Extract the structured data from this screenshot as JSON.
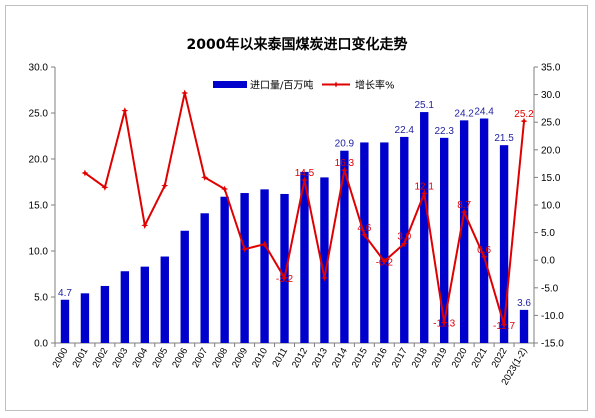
{
  "chart_data": {
    "type": "bar",
    "title": "2000年以来泰国煤炭进口变化走势",
    "categories": [
      "2000",
      "2001",
      "2002",
      "2003",
      "2004",
      "2005",
      "2006",
      "2007",
      "2008",
      "2009",
      "2010",
      "2011",
      "2012",
      "2013",
      "2014",
      "2015",
      "2016",
      "2017",
      "2018",
      "2019",
      "2020",
      "2021",
      "2022",
      "2023(1-2)"
    ],
    "series": [
      {
        "name": "进口量/百万吨",
        "type": "bar",
        "axis": "left",
        "color": "#0000cc",
        "values": [
          4.7,
          5.4,
          6.2,
          7.8,
          8.3,
          9.4,
          12.2,
          14.1,
          15.9,
          16.3,
          16.7,
          16.2,
          18.6,
          18.0,
          20.9,
          21.8,
          21.8,
          22.4,
          25.1,
          22.3,
          24.2,
          24.4,
          21.5,
          3.6
        ],
        "labels": [
          "4.7",
          "",
          "",
          "",
          "",
          "",
          "",
          "",
          "",
          "",
          "",
          "",
          "",
          "",
          "20.9",
          "",
          "",
          "22.4",
          "25.1",
          "22.3",
          "24.2",
          "24.4",
          "21.5",
          "3.6"
        ]
      },
      {
        "name": "增长率%",
        "type": "line",
        "axis": "right",
        "color": "#e00000",
        "values": [
          null,
          15.8,
          13.2,
          27.1,
          6.3,
          13.5,
          30.3,
          15.0,
          12.9,
          2.0,
          2.9,
          -3.2,
          14.5,
          -3.2,
          16.3,
          4.6,
          -0.2,
          3.0,
          12.1,
          -11.3,
          8.7,
          0.6,
          -11.7,
          25.2
        ],
        "labels": [
          "",
          "",
          "",
          "",
          "",
          "",
          "",
          "",
          "",
          "",
          "",
          "-3.2",
          "14.5",
          "",
          "16.3",
          "4.6",
          "-0.2",
          "3.0",
          "12.1",
          "-11.3",
          "8.7",
          "0.6",
          "-11.7",
          "25.2"
        ]
      }
    ],
    "y_left": {
      "min": 0,
      "max": 30,
      "step": 5,
      "tick_labels": [
        "0.0",
        "5.0",
        "10.0",
        "15.0",
        "20.0",
        "25.0",
        "30.0"
      ]
    },
    "y_right": {
      "min": -15,
      "max": 35,
      "step": 5,
      "tick_labels": [
        "-15.0",
        "-10.0",
        "-5.0",
        "0.0",
        "5.0",
        "10.0",
        "15.0",
        "20.0",
        "25.0",
        "30.0",
        "35.0"
      ]
    },
    "legend_position": "top-right",
    "grid": false
  }
}
